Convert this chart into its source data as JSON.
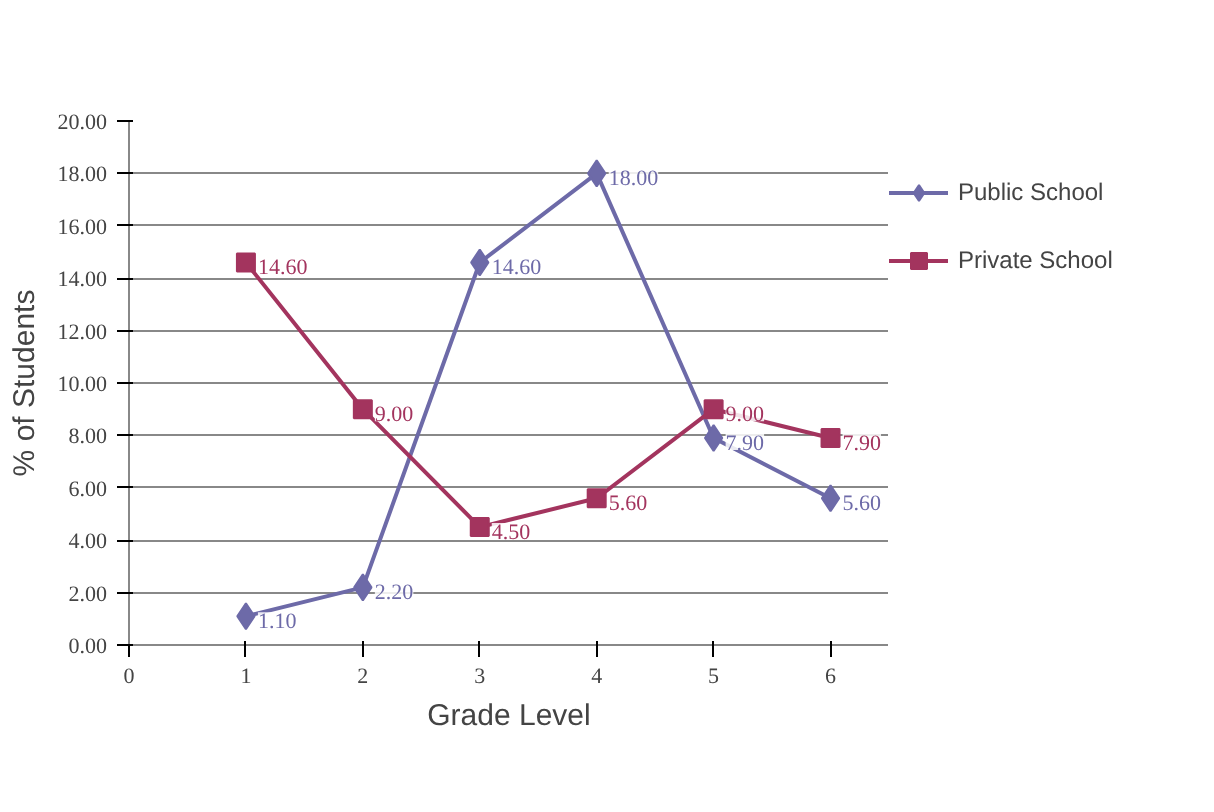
{
  "chart_data": {
    "type": "line",
    "xlabel": "Grade Level",
    "ylabel": "% of Students",
    "x": [
      1,
      2,
      3,
      4,
      5,
      6
    ],
    "series": [
      {
        "name": "Public School",
        "color": "#6d6aa8",
        "marker": "diamond",
        "values": [
          1.1,
          2.2,
          14.6,
          18.0,
          7.9,
          5.6
        ],
        "value_labels": [
          "1.10",
          "2.20",
          "14.60",
          "18.00",
          "7.90",
          "5.60"
        ]
      },
      {
        "name": "Private School",
        "color": "#a3345e",
        "marker": "square",
        "values": [
          14.6,
          9.0,
          4.5,
          5.6,
          9.0,
          7.9
        ],
        "value_labels": [
          "14.60",
          "9.00",
          "4.50",
          "5.60",
          "9.00",
          "7.90"
        ]
      }
    ],
    "xlim": [
      0,
      6.5
    ],
    "xticks": [
      0,
      1,
      2,
      3,
      4,
      5,
      6
    ],
    "ylim": [
      0,
      20
    ],
    "yticks": [
      {
        "value": 0,
        "label": "0.00"
      },
      {
        "value": 2,
        "label": "2.00"
      },
      {
        "value": 4,
        "label": "4.00"
      },
      {
        "value": 6,
        "label": "6.00"
      },
      {
        "value": 8,
        "label": "8.00"
      },
      {
        "value": 10,
        "label": "10.00"
      },
      {
        "value": 12,
        "label": "12.00"
      },
      {
        "value": 14,
        "label": "14.00"
      },
      {
        "value": 16,
        "label": "16.00"
      },
      {
        "value": 18,
        "label": "18.00"
      },
      {
        "value": 20,
        "label": "20.00"
      }
    ],
    "grid": "y",
    "legend": "right",
    "line_style": "solid"
  }
}
